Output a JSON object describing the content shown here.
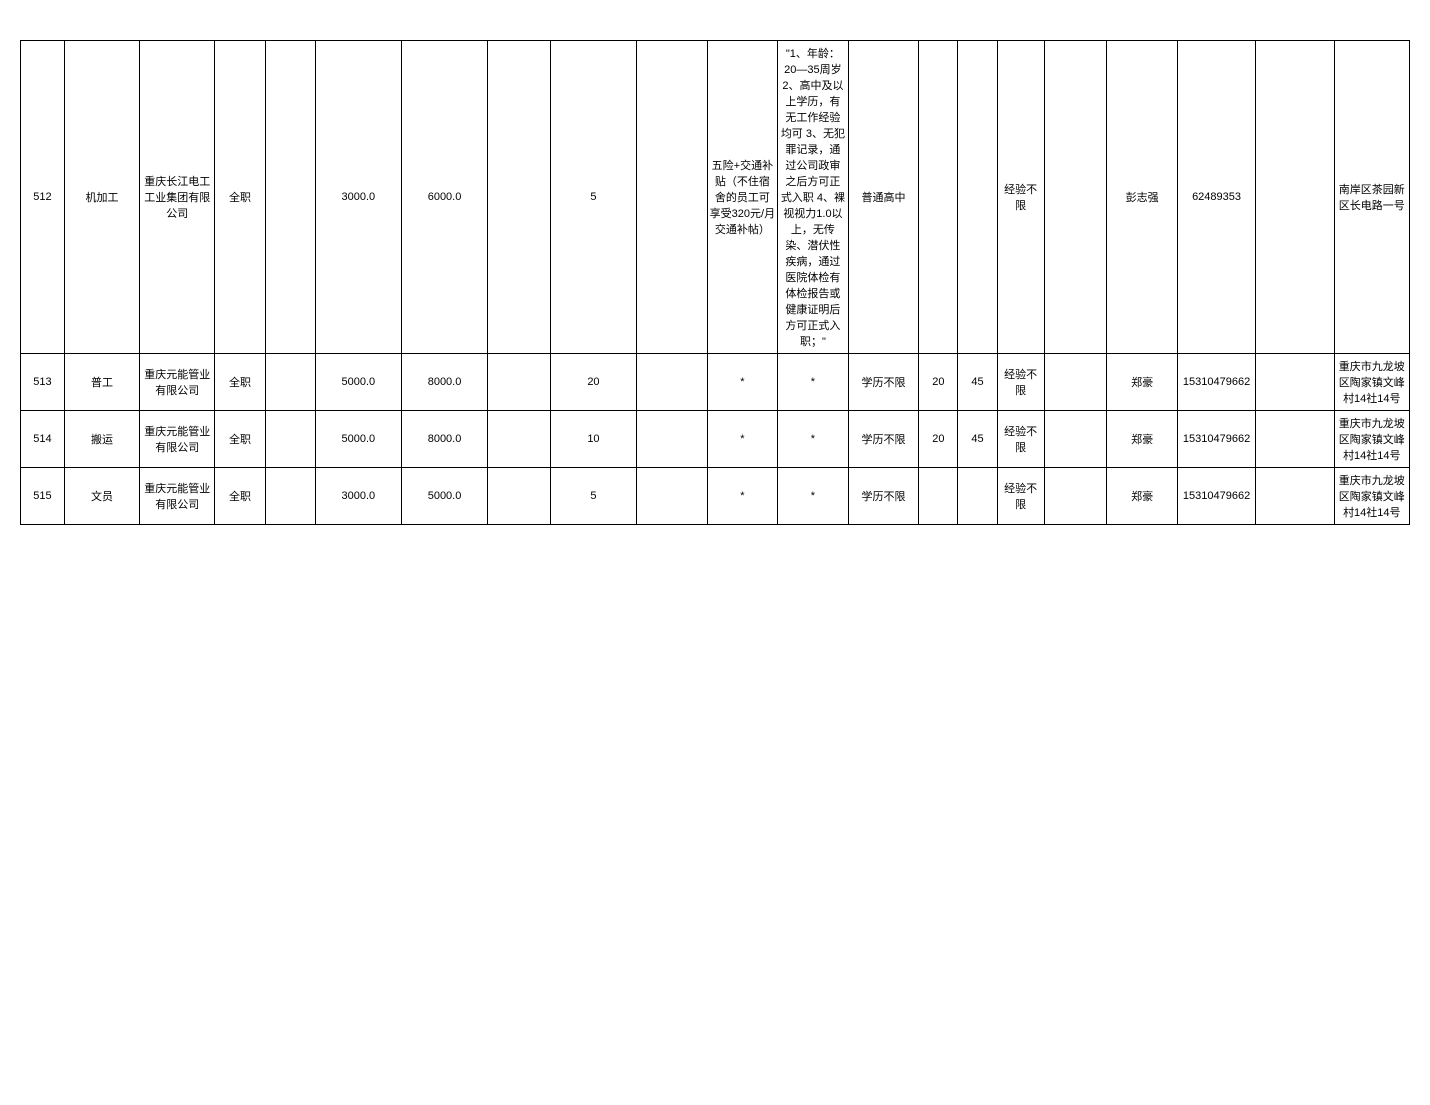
{
  "table": {
    "columns": [
      {
        "key": "id",
        "class": "col-id"
      },
      {
        "key": "position",
        "class": "col-position"
      },
      {
        "key": "company",
        "class": "col-company"
      },
      {
        "key": "type",
        "class": "col-type"
      },
      {
        "key": "empty1",
        "class": "col-empty1"
      },
      {
        "key": "salary_min",
        "class": "col-salary-min"
      },
      {
        "key": "salary_max",
        "class": "col-salary-max"
      },
      {
        "key": "empty2",
        "class": "col-empty2"
      },
      {
        "key": "count",
        "class": "col-count"
      },
      {
        "key": "empty3",
        "class": "col-empty3"
      },
      {
        "key": "benefits",
        "class": "col-benefits"
      },
      {
        "key": "requirements",
        "class": "col-requirements"
      },
      {
        "key": "education",
        "class": "col-education"
      },
      {
        "key": "age_min",
        "class": "col-age-min"
      },
      {
        "key": "age_max",
        "class": "col-age-max"
      },
      {
        "key": "experience",
        "class": "col-experience"
      },
      {
        "key": "empty4",
        "class": "col-empty4"
      },
      {
        "key": "contact",
        "class": "col-contact"
      },
      {
        "key": "phone",
        "class": "col-phone"
      },
      {
        "key": "empty5",
        "class": "col-empty5"
      },
      {
        "key": "address",
        "class": "col-address"
      }
    ],
    "rows": [
      {
        "row_class": "tall-row",
        "id": "512",
        "position": "机加工",
        "company": "重庆长江电工工业集团有限公司",
        "type": "全职",
        "empty1": "",
        "salary_min": "3000.0",
        "salary_max": "6000.0",
        "empty2": "",
        "count": "5",
        "empty3": "",
        "benefits": "五险+交通补贴（不住宿舍的员工可享受320元/月交通补帖）",
        "requirements": "\"1、年龄：20—35周岁 2、高中及以上学历，有无工作经验均可 3、无犯罪记录，通过公司政审之后方可正式入职 4、裸视视力1.0以上，无传染、潜伏性疾病，通过医院体检有体检报告或健康证明后方可正式入职；\"",
        "education": "普通高中",
        "age_min": "",
        "age_max": "",
        "experience": "经验不限",
        "empty4": "",
        "contact": "彭志强",
        "phone": "62489353",
        "empty5": "",
        "address": "南岸区茶园新区长电路一号"
      },
      {
        "row_class": "short-row",
        "id": "513",
        "position": "普工",
        "company": "重庆元能管业有限公司",
        "type": "全职",
        "empty1": "",
        "salary_min": "5000.0",
        "salary_max": "8000.0",
        "empty2": "",
        "count": "20",
        "empty3": "",
        "benefits": "*",
        "requirements": "*",
        "education": "学历不限",
        "age_min": "20",
        "age_max": "45",
        "experience": "经验不限",
        "empty4": "",
        "contact": "郑豪",
        "phone": "15310479662",
        "empty5": "",
        "address": "重庆市九龙坡区陶家镇文峰村14社14号"
      },
      {
        "row_class": "short-row",
        "id": "514",
        "position": "搬运",
        "company": "重庆元能管业有限公司",
        "type": "全职",
        "empty1": "",
        "salary_min": "5000.0",
        "salary_max": "8000.0",
        "empty2": "",
        "count": "10",
        "empty3": "",
        "benefits": "*",
        "requirements": "*",
        "education": "学历不限",
        "age_min": "20",
        "age_max": "45",
        "experience": "经验不限",
        "empty4": "",
        "contact": "郑豪",
        "phone": "15310479662",
        "empty5": "",
        "address": "重庆市九龙坡区陶家镇文峰村14社14号"
      },
      {
        "row_class": "short-row",
        "id": "515",
        "position": "文员",
        "company": "重庆元能管业有限公司",
        "type": "全职",
        "empty1": "",
        "salary_min": "3000.0",
        "salary_max": "5000.0",
        "empty2": "",
        "count": "5",
        "empty3": "",
        "benefits": "*",
        "requirements": "*",
        "education": "学历不限",
        "age_min": "",
        "age_max": "",
        "experience": "经验不限",
        "empty4": "",
        "contact": "郑豪",
        "phone": "15310479662",
        "empty5": "",
        "address": "重庆市九龙坡区陶家镇文峰村14社14号"
      }
    ]
  },
  "styling": {
    "border_color": "#000000",
    "background_color": "#ffffff",
    "text_color": "#000000",
    "font_size": 11
  }
}
